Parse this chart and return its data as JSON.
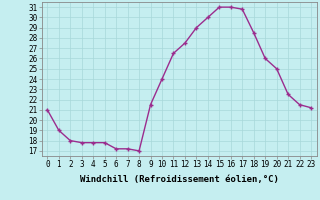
{
  "x": [
    0,
    1,
    2,
    3,
    4,
    5,
    6,
    7,
    8,
    9,
    10,
    11,
    12,
    13,
    14,
    15,
    16,
    17,
    18,
    19,
    20,
    21,
    22,
    23
  ],
  "y": [
    21,
    19,
    18,
    17.8,
    17.8,
    17.8,
    17.2,
    17.2,
    17.0,
    21.5,
    24,
    26.5,
    27.5,
    29,
    30,
    31,
    31,
    30.8,
    28.5,
    26,
    25,
    22.5,
    21.5,
    21.2
  ],
  "line_color": "#9B2D8E",
  "marker": "+",
  "marker_size": 3,
  "linewidth": 1.0,
  "background_color": "#C5EEF0",
  "grid_color": "#A8D8DA",
  "xlabel": "Windchill (Refroidissement éolien,°C)",
  "xlim": [
    -0.5,
    23.5
  ],
  "ylim": [
    16.5,
    31.5
  ],
  "yticks": [
    17,
    18,
    19,
    20,
    21,
    22,
    23,
    24,
    25,
    26,
    27,
    28,
    29,
    30,
    31
  ],
  "xticks": [
    0,
    1,
    2,
    3,
    4,
    5,
    6,
    7,
    8,
    9,
    10,
    11,
    12,
    13,
    14,
    15,
    16,
    17,
    18,
    19,
    20,
    21,
    22,
    23
  ],
  "tick_fontsize": 5.5,
  "xlabel_fontsize": 6.5,
  "spine_color": "#888888",
  "markeredgewidth": 1.0
}
